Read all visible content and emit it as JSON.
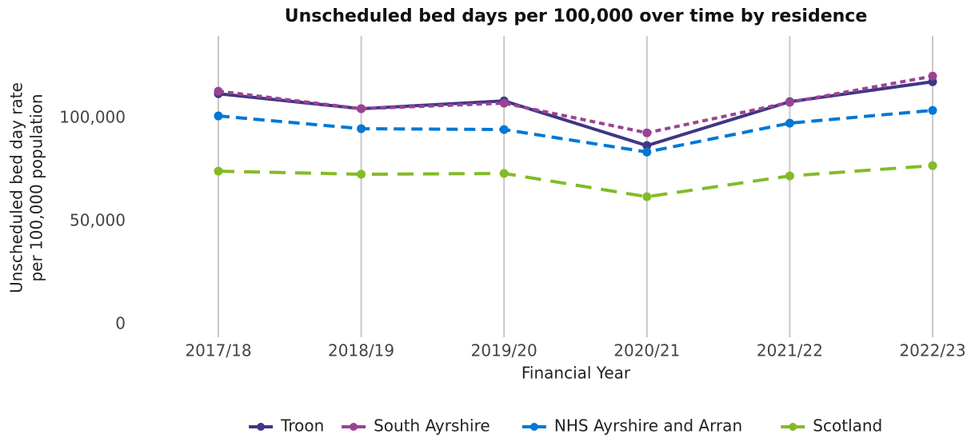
{
  "chart_data": {
    "type": "line",
    "title": "Unscheduled bed days per 100,000 over time by residence",
    "x_label": "Financial Year",
    "y_label": [
      "Unscheduled bed day rate",
      "per 100,000 population"
    ],
    "categories": [
      "2017/18",
      "2018/19",
      "2019/20",
      "2020/21",
      "2021/22",
      "2022/23"
    ],
    "series": [
      {
        "name": "Troon",
        "color": "#3f3685",
        "line_style": "solid",
        "values": [
          112000,
          104700,
          108500,
          86800,
          108100,
          117800
        ]
      },
      {
        "name": "South Ayrshire",
        "color": "#9b4393",
        "line_style": "dotted",
        "values": [
          113200,
          104700,
          107400,
          93000,
          107800,
          120500
        ]
      },
      {
        "name": "NHS Ayrshire and Arran",
        "color": "#0078d4",
        "line_style": "dashed",
        "values": [
          101200,
          95000,
          94600,
          83700,
          97700,
          103900
        ]
      },
      {
        "name": "Scotland",
        "color": "#83bb26",
        "line_style": "longdash",
        "values": [
          74400,
          72900,
          73300,
          62000,
          72100,
          77100
        ]
      }
    ],
    "ylim": [
      -6200,
      140000
    ],
    "yticks": [
      0,
      {
        "value": 50000,
        "label": "50,000"
      },
      {
        "value": 100000,
        "label": "100,000"
      }
    ],
    "grid": "x",
    "legend": "bottom"
  }
}
